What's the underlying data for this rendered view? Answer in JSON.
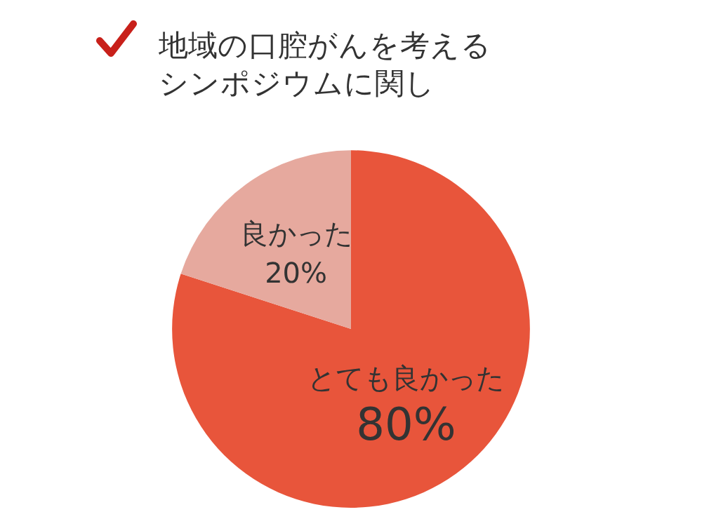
{
  "chart_data": {
    "type": "pie",
    "title": "地域の口腔がんを考えるシンポジウムに関し",
    "categories": [
      "とても良かった",
      "良かった"
    ],
    "values": [
      80,
      20
    ],
    "value_labels": [
      "80%",
      "20%"
    ],
    "colors": [
      "#e8553b",
      "#e6a99e"
    ],
    "legend": false
  }
}
